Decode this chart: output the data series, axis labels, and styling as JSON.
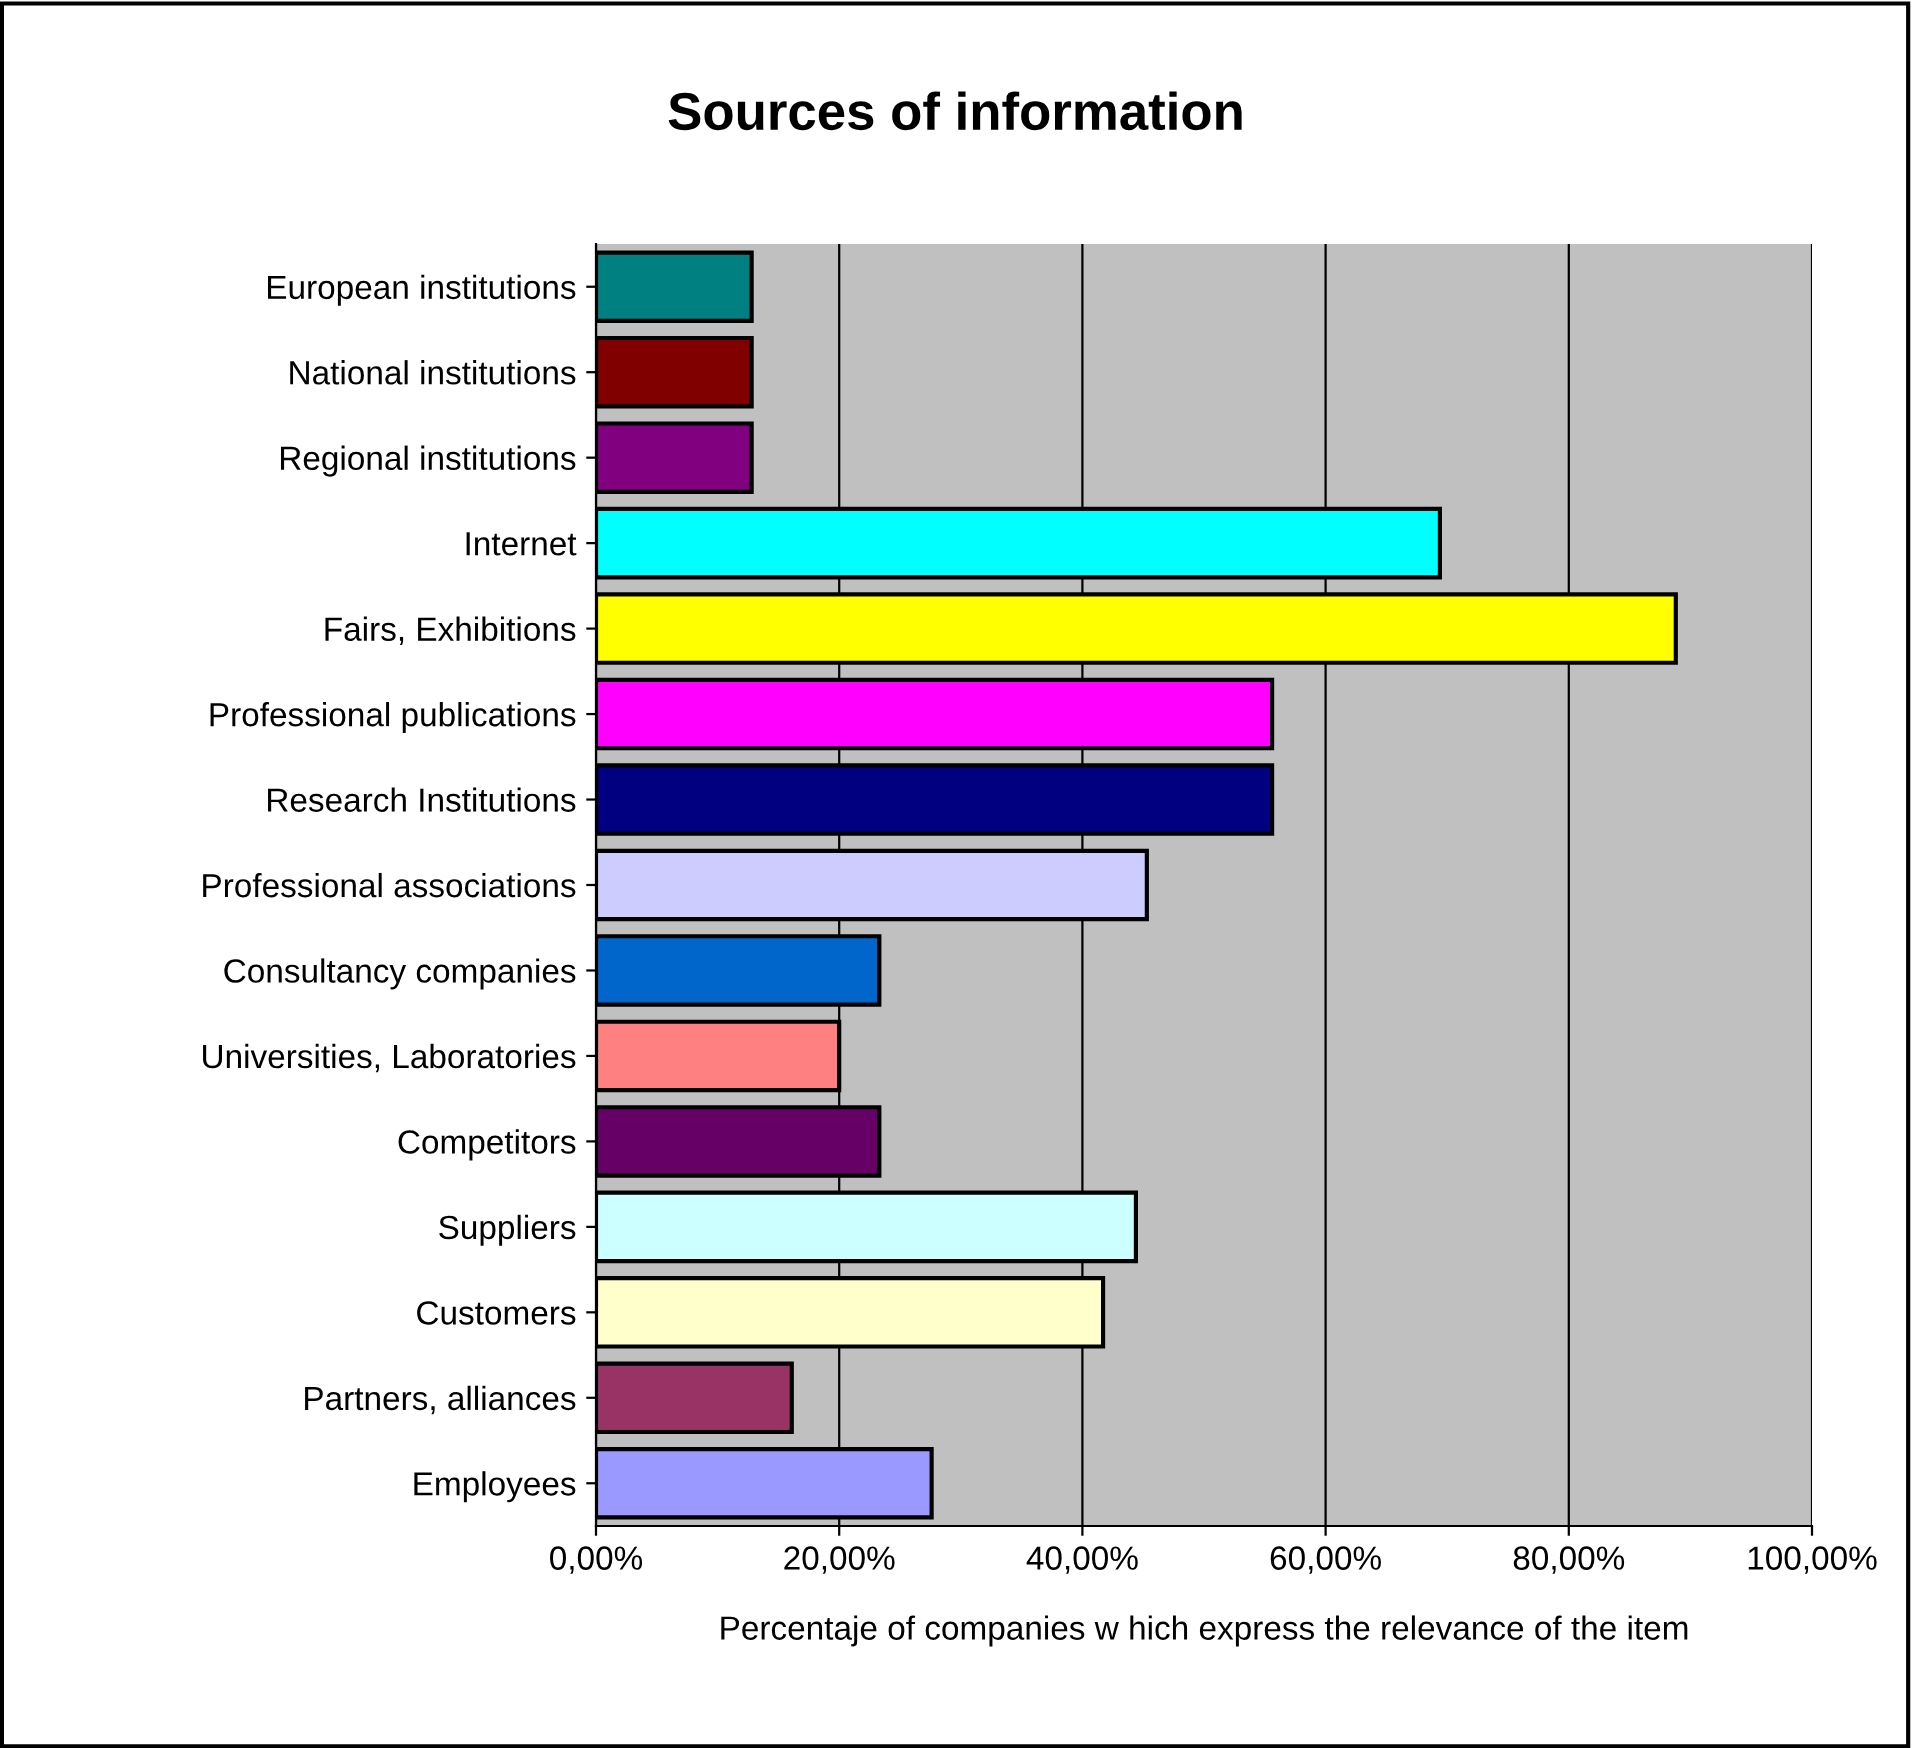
{
  "chart_data": {
    "type": "bar",
    "orientation": "horizontal",
    "title": "Sources of information",
    "xlabel": "Percentaje of companies w hich express the relevance of the item",
    "categories": [
      "European institutions",
      "National institutions",
      "Regional institutions",
      "Internet",
      "Fairs, Exhibitions",
      "Professional publications",
      "Research Institutions",
      "Professional associations",
      "Consultancy companies",
      "Universities, Laboratories",
      "Competitors",
      "Suppliers",
      "Customers",
      "Partners, alliances",
      "Employees"
    ],
    "values": [
      12.8,
      12.8,
      12.8,
      69.4,
      88.8,
      55.6,
      55.6,
      45.3,
      23.3,
      20.0,
      23.3,
      44.4,
      41.7,
      16.1,
      27.6
    ],
    "colors": [
      "#008080",
      "#800000",
      "#800080",
      "#00ffff",
      "#ffff00",
      "#ff00ff",
      "#000080",
      "#ccccff",
      "#0066cc",
      "#ff8080",
      "#660066",
      "#ccffff",
      "#ffffcc",
      "#993366",
      "#9999ff"
    ],
    "xlim": [
      0,
      100
    ],
    "xticks": [
      {
        "value": 0,
        "label": "0,00%"
      },
      {
        "value": 20,
        "label": "20,00%"
      },
      {
        "value": 40,
        "label": "40,00%"
      },
      {
        "value": 60,
        "label": "60,00%"
      },
      {
        "value": 80,
        "label": "80,00%"
      },
      {
        "value": 100,
        "label": "100,00%"
      }
    ],
    "grid": "x",
    "legend": false
  }
}
